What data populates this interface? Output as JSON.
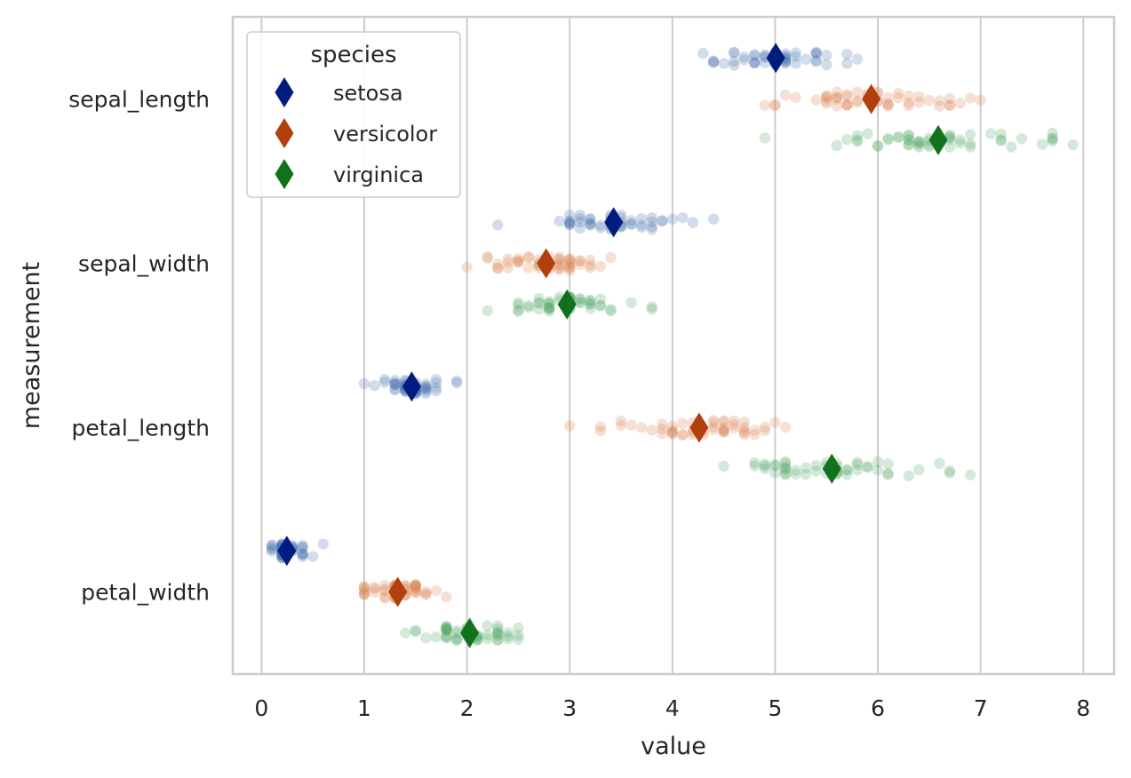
{
  "chart_data": {
    "type": "scatter",
    "subtype": "strip-with-means",
    "orientation": "horizontal",
    "xlabel": "value",
    "ylabel": "measurement",
    "xlim": [
      -0.28,
      8.3
    ],
    "xticks": [
      0,
      1,
      2,
      3,
      4,
      5,
      6,
      7,
      8
    ],
    "categories": [
      "sepal_length",
      "sepal_width",
      "petal_length",
      "petal_width"
    ],
    "grid": "vertical",
    "legend": {
      "title": "species",
      "placement": "top-left"
    },
    "series": [
      {
        "name": "setosa",
        "point_color": "#4c72b0",
        "mean_color": "#001c7f",
        "means": [
          5.006,
          3.428,
          1.462,
          0.246
        ],
        "values": {
          "sepal_length": [
            5.1,
            4.9,
            4.7,
            4.6,
            5.0,
            5.4,
            4.6,
            5.0,
            4.4,
            4.9,
            5.4,
            4.8,
            4.8,
            4.3,
            5.8,
            5.7,
            5.4,
            5.1,
            5.7,
            5.1,
            5.4,
            5.1,
            4.6,
            5.1,
            4.8,
            5.0,
            5.0,
            5.2,
            5.2,
            4.7,
            4.8,
            5.4,
            5.2,
            5.5,
            4.9,
            5.0,
            5.5,
            4.9,
            4.4,
            5.1,
            5.0,
            4.5,
            4.4,
            5.0,
            5.1,
            4.8,
            5.1,
            4.6,
            5.3,
            5.0
          ],
          "sepal_width": [
            3.5,
            3.0,
            3.2,
            3.1,
            3.6,
            3.9,
            3.4,
            3.4,
            2.9,
            3.1,
            3.7,
            3.4,
            3.0,
            3.0,
            4.0,
            4.4,
            3.9,
            3.5,
            3.8,
            3.8,
            3.4,
            3.7,
            3.6,
            3.3,
            3.4,
            3.0,
            3.4,
            3.5,
            3.4,
            3.2,
            3.1,
            3.4,
            4.1,
            4.2,
            3.1,
            3.2,
            3.5,
            3.6,
            3.0,
            3.4,
            3.5,
            2.3,
            3.2,
            3.5,
            3.8,
            3.0,
            3.8,
            3.2,
            3.7,
            3.3
          ],
          "petal_length": [
            1.4,
            1.4,
            1.3,
            1.5,
            1.4,
            1.7,
            1.4,
            1.5,
            1.4,
            1.5,
            1.5,
            1.6,
            1.4,
            1.1,
            1.2,
            1.5,
            1.3,
            1.4,
            1.7,
            1.5,
            1.7,
            1.5,
            1.0,
            1.7,
            1.9,
            1.6,
            1.6,
            1.5,
            1.4,
            1.6,
            1.6,
            1.5,
            1.5,
            1.4,
            1.5,
            1.2,
            1.3,
            1.4,
            1.3,
            1.5,
            1.3,
            1.3,
            1.3,
            1.6,
            1.9,
            1.4,
            1.6,
            1.4,
            1.5,
            1.4
          ],
          "petal_width": [
            0.2,
            0.2,
            0.2,
            0.2,
            0.2,
            0.4,
            0.3,
            0.2,
            0.2,
            0.1,
            0.2,
            0.2,
            0.1,
            0.1,
            0.2,
            0.4,
            0.4,
            0.3,
            0.3,
            0.3,
            0.2,
            0.4,
            0.2,
            0.5,
            0.2,
            0.2,
            0.4,
            0.2,
            0.2,
            0.2,
            0.2,
            0.4,
            0.1,
            0.2,
            0.2,
            0.2,
            0.2,
            0.1,
            0.2,
            0.2,
            0.3,
            0.3,
            0.2,
            0.6,
            0.4,
            0.3,
            0.2,
            0.2,
            0.2,
            0.2
          ]
        }
      },
      {
        "name": "versicolor",
        "point_color": "#dd8452",
        "mean_color": "#b1400d",
        "means": [
          5.936,
          2.77,
          4.26,
          1.326
        ],
        "values": {
          "sepal_length": [
            7.0,
            6.4,
            6.9,
            5.5,
            6.5,
            5.7,
            6.3,
            4.9,
            6.6,
            5.2,
            5.0,
            5.9,
            6.0,
            6.1,
            5.6,
            6.7,
            5.6,
            5.8,
            6.2,
            5.6,
            5.9,
            6.1,
            6.3,
            6.1,
            6.4,
            6.6,
            6.8,
            6.7,
            6.0,
            5.7,
            5.5,
            5.5,
            5.8,
            6.0,
            5.4,
            6.0,
            6.7,
            6.3,
            5.6,
            5.5,
            5.5,
            6.1,
            5.8,
            5.0,
            5.6,
            5.7,
            5.7,
            6.2,
            5.1,
            5.7
          ],
          "sepal_width": [
            3.2,
            3.2,
            3.1,
            2.3,
            2.8,
            2.8,
            3.3,
            2.4,
            2.9,
            2.7,
            2.0,
            3.0,
            2.2,
            2.9,
            2.9,
            3.1,
            3.0,
            2.7,
            2.2,
            2.5,
            3.2,
            2.8,
            2.5,
            2.8,
            2.9,
            3.0,
            2.8,
            3.0,
            2.9,
            2.6,
            2.4,
            2.4,
            2.7,
            2.7,
            3.0,
            3.4,
            3.1,
            2.3,
            3.0,
            2.5,
            2.6,
            3.0,
            2.6,
            2.3,
            2.7,
            3.0,
            2.9,
            2.9,
            2.5,
            2.8
          ],
          "petal_length": [
            4.7,
            4.5,
            4.9,
            4.0,
            4.6,
            4.5,
            4.7,
            3.3,
            4.6,
            3.9,
            3.5,
            4.2,
            4.0,
            4.7,
            3.6,
            4.4,
            4.5,
            4.1,
            4.5,
            3.9,
            4.8,
            4.0,
            4.9,
            4.7,
            4.3,
            4.4,
            4.8,
            5.0,
            4.5,
            3.5,
            3.8,
            3.7,
            3.9,
            5.1,
            4.5,
            4.5,
            4.7,
            4.4,
            4.1,
            4.0,
            4.4,
            4.6,
            4.0,
            3.3,
            4.2,
            4.2,
            4.2,
            4.3,
            3.0,
            4.1
          ],
          "petal_width": [
            1.4,
            1.5,
            1.5,
            1.3,
            1.5,
            1.3,
            1.6,
            1.0,
            1.3,
            1.4,
            1.0,
            1.5,
            1.0,
            1.4,
            1.3,
            1.4,
            1.5,
            1.0,
            1.5,
            1.1,
            1.8,
            1.3,
            1.5,
            1.2,
            1.3,
            1.4,
            1.4,
            1.7,
            1.5,
            1.0,
            1.1,
            1.0,
            1.2,
            1.6,
            1.5,
            1.6,
            1.5,
            1.3,
            1.3,
            1.3,
            1.2,
            1.4,
            1.2,
            1.0,
            1.3,
            1.2,
            1.3,
            1.3,
            1.1,
            1.3
          ]
        }
      },
      {
        "name": "virginica",
        "point_color": "#55a868",
        "mean_color": "#12711c",
        "means": [
          6.588,
          2.974,
          5.552,
          2.026
        ],
        "values": {
          "sepal_length": [
            6.3,
            5.8,
            7.1,
            6.3,
            6.5,
            7.6,
            4.9,
            7.3,
            6.7,
            7.2,
            6.5,
            6.4,
            6.8,
            5.7,
            5.8,
            6.4,
            6.5,
            7.7,
            7.7,
            6.0,
            6.9,
            5.6,
            7.7,
            6.3,
            6.7,
            7.2,
            6.2,
            6.1,
            6.4,
            7.2,
            7.4,
            7.9,
            6.4,
            6.3,
            6.1,
            7.7,
            6.3,
            6.4,
            6.0,
            6.9,
            6.7,
            6.9,
            5.8,
            6.8,
            6.7,
            6.7,
            6.3,
            6.5,
            6.2,
            5.9
          ],
          "sepal_width": [
            3.3,
            2.7,
            3.0,
            2.9,
            3.0,
            3.0,
            2.5,
            2.9,
            2.5,
            3.6,
            3.2,
            2.7,
            3.0,
            2.5,
            2.8,
            3.2,
            3.0,
            3.8,
            2.6,
            2.2,
            3.2,
            2.8,
            2.8,
            2.7,
            3.3,
            3.2,
            2.8,
            3.0,
            2.8,
            3.0,
            2.8,
            3.8,
            2.8,
            2.8,
            2.6,
            3.0,
            3.4,
            3.1,
            3.0,
            3.1,
            3.1,
            3.1,
            2.7,
            3.2,
            3.3,
            3.0,
            2.5,
            3.0,
            3.4,
            3.0
          ],
          "petal_length": [
            6.0,
            5.1,
            5.9,
            5.6,
            5.8,
            6.6,
            4.5,
            6.3,
            5.8,
            6.1,
            5.1,
            5.3,
            5.5,
            5.0,
            5.1,
            5.3,
            5.5,
            6.7,
            6.9,
            5.0,
            5.7,
            4.9,
            6.7,
            4.9,
            5.7,
            6.0,
            4.8,
            4.9,
            5.6,
            5.8,
            6.1,
            6.4,
            5.6,
            5.1,
            5.6,
            6.1,
            5.6,
            5.5,
            4.8,
            5.4,
            5.6,
            5.1,
            5.1,
            5.9,
            5.7,
            5.2,
            5.0,
            5.2,
            5.4,
            5.1
          ],
          "petal_width": [
            2.5,
            1.9,
            2.1,
            1.8,
            2.2,
            2.1,
            1.7,
            1.8,
            1.8,
            2.5,
            2.0,
            1.9,
            2.1,
            2.0,
            2.4,
            2.3,
            1.8,
            2.2,
            2.3,
            1.5,
            2.3,
            2.0,
            2.0,
            1.8,
            2.1,
            1.8,
            1.8,
            1.8,
            2.1,
            1.6,
            1.9,
            2.0,
            2.2,
            1.5,
            1.4,
            2.3,
            2.4,
            1.8,
            1.8,
            2.1,
            2.4,
            2.3,
            1.9,
            2.3,
            2.5,
            2.3,
            1.9,
            2.0,
            2.3,
            1.8
          ]
        }
      }
    ]
  }
}
